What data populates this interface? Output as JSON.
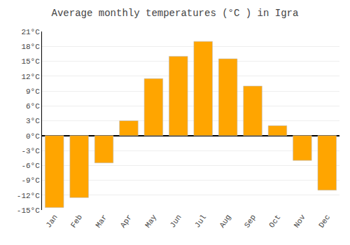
{
  "chart_data": {
    "type": "bar",
    "title": "Average monthly temperatures (°C ) in Igra",
    "categories": [
      "Jan",
      "Feb",
      "Mar",
      "Apr",
      "May",
      "Jun",
      "Jul",
      "Aug",
      "Sep",
      "Oct",
      "Nov",
      "Dec"
    ],
    "values": [
      -14.5,
      -12.5,
      -5.5,
      3.0,
      11.5,
      16.0,
      19.0,
      15.5,
      10.0,
      2.0,
      -5.0,
      -11.0
    ],
    "color": "#FFA500",
    "ylim": [
      -15,
      21
    ],
    "yticks": [
      {
        "value": -15,
        "label": "-15°C"
      },
      {
        "value": -12,
        "label": "-12°C"
      },
      {
        "value": -9,
        "label": "-9°C"
      },
      {
        "value": -6,
        "label": "-6°C"
      },
      {
        "value": -3,
        "label": "-3°C"
      },
      {
        "value": 0,
        "label": "0°C"
      },
      {
        "value": 3,
        "label": "3°C"
      },
      {
        "value": 6,
        "label": "6°C"
      },
      {
        "value": 9,
        "label": "9°C"
      },
      {
        "value": 12,
        "label": "12°C"
      },
      {
        "value": 15,
        "label": "15°C"
      },
      {
        "value": 18,
        "label": "18°C"
      },
      {
        "value": 21,
        "label": "21°C"
      }
    ],
    "grid": true
  }
}
